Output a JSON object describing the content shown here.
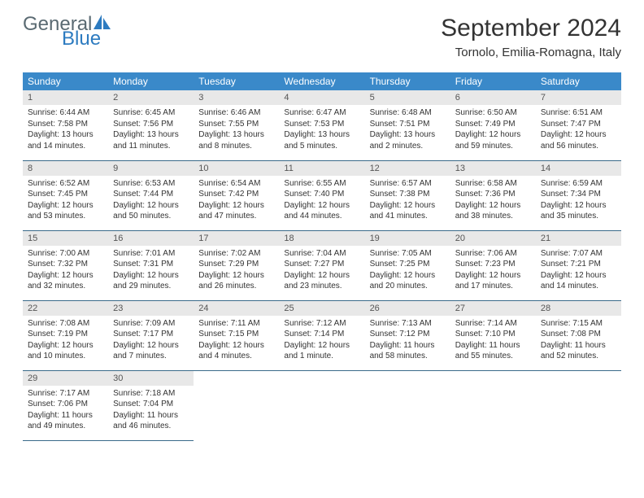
{
  "logo": {
    "text1": "General",
    "text2": "Blue"
  },
  "title": "September 2024",
  "location": "Tornolo, Emilia-Romagna, Italy",
  "colors": {
    "header_bg": "#3a89c9",
    "header_text": "#ffffff",
    "daynum_bg": "#e8e8e8",
    "row_border": "#3a6a8a",
    "logo_gray": "#5a6a72",
    "logo_blue": "#2d7bc0"
  },
  "weekdays": [
    "Sunday",
    "Monday",
    "Tuesday",
    "Wednesday",
    "Thursday",
    "Friday",
    "Saturday"
  ],
  "days": [
    {
      "n": "1",
      "sr": "Sunrise: 6:44 AM",
      "ss": "Sunset: 7:58 PM",
      "dl1": "Daylight: 13 hours",
      "dl2": "and 14 minutes."
    },
    {
      "n": "2",
      "sr": "Sunrise: 6:45 AM",
      "ss": "Sunset: 7:56 PM",
      "dl1": "Daylight: 13 hours",
      "dl2": "and 11 minutes."
    },
    {
      "n": "3",
      "sr": "Sunrise: 6:46 AM",
      "ss": "Sunset: 7:55 PM",
      "dl1": "Daylight: 13 hours",
      "dl2": "and 8 minutes."
    },
    {
      "n": "4",
      "sr": "Sunrise: 6:47 AM",
      "ss": "Sunset: 7:53 PM",
      "dl1": "Daylight: 13 hours",
      "dl2": "and 5 minutes."
    },
    {
      "n": "5",
      "sr": "Sunrise: 6:48 AM",
      "ss": "Sunset: 7:51 PM",
      "dl1": "Daylight: 13 hours",
      "dl2": "and 2 minutes."
    },
    {
      "n": "6",
      "sr": "Sunrise: 6:50 AM",
      "ss": "Sunset: 7:49 PM",
      "dl1": "Daylight: 12 hours",
      "dl2": "and 59 minutes."
    },
    {
      "n": "7",
      "sr": "Sunrise: 6:51 AM",
      "ss": "Sunset: 7:47 PM",
      "dl1": "Daylight: 12 hours",
      "dl2": "and 56 minutes."
    },
    {
      "n": "8",
      "sr": "Sunrise: 6:52 AM",
      "ss": "Sunset: 7:45 PM",
      "dl1": "Daylight: 12 hours",
      "dl2": "and 53 minutes."
    },
    {
      "n": "9",
      "sr": "Sunrise: 6:53 AM",
      "ss": "Sunset: 7:44 PM",
      "dl1": "Daylight: 12 hours",
      "dl2": "and 50 minutes."
    },
    {
      "n": "10",
      "sr": "Sunrise: 6:54 AM",
      "ss": "Sunset: 7:42 PM",
      "dl1": "Daylight: 12 hours",
      "dl2": "and 47 minutes."
    },
    {
      "n": "11",
      "sr": "Sunrise: 6:55 AM",
      "ss": "Sunset: 7:40 PM",
      "dl1": "Daylight: 12 hours",
      "dl2": "and 44 minutes."
    },
    {
      "n": "12",
      "sr": "Sunrise: 6:57 AM",
      "ss": "Sunset: 7:38 PM",
      "dl1": "Daylight: 12 hours",
      "dl2": "and 41 minutes."
    },
    {
      "n": "13",
      "sr": "Sunrise: 6:58 AM",
      "ss": "Sunset: 7:36 PM",
      "dl1": "Daylight: 12 hours",
      "dl2": "and 38 minutes."
    },
    {
      "n": "14",
      "sr": "Sunrise: 6:59 AM",
      "ss": "Sunset: 7:34 PM",
      "dl1": "Daylight: 12 hours",
      "dl2": "and 35 minutes."
    },
    {
      "n": "15",
      "sr": "Sunrise: 7:00 AM",
      "ss": "Sunset: 7:32 PM",
      "dl1": "Daylight: 12 hours",
      "dl2": "and 32 minutes."
    },
    {
      "n": "16",
      "sr": "Sunrise: 7:01 AM",
      "ss": "Sunset: 7:31 PM",
      "dl1": "Daylight: 12 hours",
      "dl2": "and 29 minutes."
    },
    {
      "n": "17",
      "sr": "Sunrise: 7:02 AM",
      "ss": "Sunset: 7:29 PM",
      "dl1": "Daylight: 12 hours",
      "dl2": "and 26 minutes."
    },
    {
      "n": "18",
      "sr": "Sunrise: 7:04 AM",
      "ss": "Sunset: 7:27 PM",
      "dl1": "Daylight: 12 hours",
      "dl2": "and 23 minutes."
    },
    {
      "n": "19",
      "sr": "Sunrise: 7:05 AM",
      "ss": "Sunset: 7:25 PM",
      "dl1": "Daylight: 12 hours",
      "dl2": "and 20 minutes."
    },
    {
      "n": "20",
      "sr": "Sunrise: 7:06 AM",
      "ss": "Sunset: 7:23 PM",
      "dl1": "Daylight: 12 hours",
      "dl2": "and 17 minutes."
    },
    {
      "n": "21",
      "sr": "Sunrise: 7:07 AM",
      "ss": "Sunset: 7:21 PM",
      "dl1": "Daylight: 12 hours",
      "dl2": "and 14 minutes."
    },
    {
      "n": "22",
      "sr": "Sunrise: 7:08 AM",
      "ss": "Sunset: 7:19 PM",
      "dl1": "Daylight: 12 hours",
      "dl2": "and 10 minutes."
    },
    {
      "n": "23",
      "sr": "Sunrise: 7:09 AM",
      "ss": "Sunset: 7:17 PM",
      "dl1": "Daylight: 12 hours",
      "dl2": "and 7 minutes."
    },
    {
      "n": "24",
      "sr": "Sunrise: 7:11 AM",
      "ss": "Sunset: 7:15 PM",
      "dl1": "Daylight: 12 hours",
      "dl2": "and 4 minutes."
    },
    {
      "n": "25",
      "sr": "Sunrise: 7:12 AM",
      "ss": "Sunset: 7:14 PM",
      "dl1": "Daylight: 12 hours",
      "dl2": "and 1 minute."
    },
    {
      "n": "26",
      "sr": "Sunrise: 7:13 AM",
      "ss": "Sunset: 7:12 PM",
      "dl1": "Daylight: 11 hours",
      "dl2": "and 58 minutes."
    },
    {
      "n": "27",
      "sr": "Sunrise: 7:14 AM",
      "ss": "Sunset: 7:10 PM",
      "dl1": "Daylight: 11 hours",
      "dl2": "and 55 minutes."
    },
    {
      "n": "28",
      "sr": "Sunrise: 7:15 AM",
      "ss": "Sunset: 7:08 PM",
      "dl1": "Daylight: 11 hours",
      "dl2": "and 52 minutes."
    },
    {
      "n": "29",
      "sr": "Sunrise: 7:17 AM",
      "ss": "Sunset: 7:06 PM",
      "dl1": "Daylight: 11 hours",
      "dl2": "and 49 minutes."
    },
    {
      "n": "30",
      "sr": "Sunrise: 7:18 AM",
      "ss": "Sunset: 7:04 PM",
      "dl1": "Daylight: 11 hours",
      "dl2": "and 46 minutes."
    }
  ]
}
